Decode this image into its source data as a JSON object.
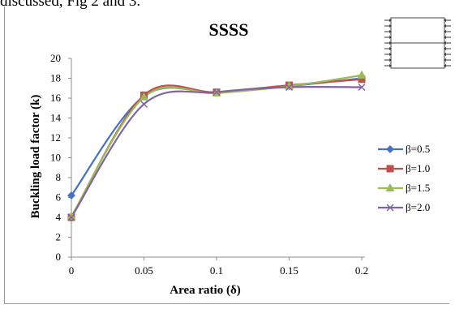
{
  "page": {
    "caption": "discussed, Fig 2 and 3."
  },
  "chart_data": {
    "type": "line",
    "title": "SSSS",
    "xlabel": "Area ratio (δ)",
    "ylabel": "Buckling load factor (k)",
    "categories": [
      "0",
      "0.05",
      "0.1",
      "0.15",
      "0.2"
    ],
    "yticks": [
      "0",
      "2",
      "4",
      "6",
      "8",
      "10",
      "12",
      "14",
      "16",
      "18",
      "20"
    ],
    "ylim": [
      0,
      20
    ],
    "grid": false,
    "legend_position": "right",
    "smooth": true,
    "series": [
      {
        "name": "β=0.5",
        "values": [
          6.2,
          16.2,
          16.6,
          17.2,
          18.0
        ],
        "color": "#4472C4",
        "marker": "diamond"
      },
      {
        "name": "β=1.0",
        "values": [
          4.0,
          16.3,
          16.6,
          17.3,
          17.9
        ],
        "color": "#C0504D",
        "marker": "square"
      },
      {
        "name": "β=1.5",
        "values": [
          4.1,
          16.1,
          16.5,
          17.2,
          18.3
        ],
        "color": "#9BBB59",
        "marker": "triangle"
      },
      {
        "name": "β=2.0",
        "values": [
          4.0,
          15.4,
          16.6,
          17.1,
          17.1
        ],
        "color": "#8064A2",
        "marker": "x"
      }
    ]
  }
}
